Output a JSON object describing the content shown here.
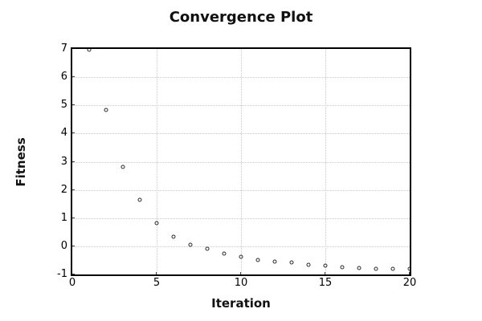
{
  "page": {
    "background": "#ffffff"
  },
  "chart_data": {
    "type": "scatter",
    "title": "Convergence Plot",
    "xlabel": "Iteration",
    "ylabel": "Fitness",
    "xlim": [
      0,
      20
    ],
    "ylim": [
      -1,
      7
    ],
    "x_ticks": [
      0,
      5,
      10,
      15,
      20
    ],
    "y_ticks": [
      -1,
      0,
      1,
      2,
      3,
      4,
      5,
      6,
      7
    ],
    "grid": true,
    "grid_style": "dotted",
    "legend": "none",
    "marker": "open-circle",
    "series": [
      {
        "name": "fitness",
        "x": [
          1,
          2,
          3,
          4,
          5,
          6,
          7,
          8,
          9,
          10,
          11,
          12,
          13,
          14,
          15,
          16,
          17,
          18,
          19,
          20
        ],
        "y": [
          6.98,
          4.84,
          2.81,
          1.64,
          0.82,
          0.33,
          0.05,
          -0.1,
          -0.25,
          -0.36,
          -0.48,
          -0.55,
          -0.58,
          -0.65,
          -0.7,
          -0.74,
          -0.77,
          -0.79,
          -0.8,
          -0.81
        ]
      }
    ],
    "colors": {
      "marker_stroke": "#2a2a2a",
      "grid_line": "#c9c9c9",
      "axis_border": "#000000",
      "text": "#000000"
    }
  }
}
